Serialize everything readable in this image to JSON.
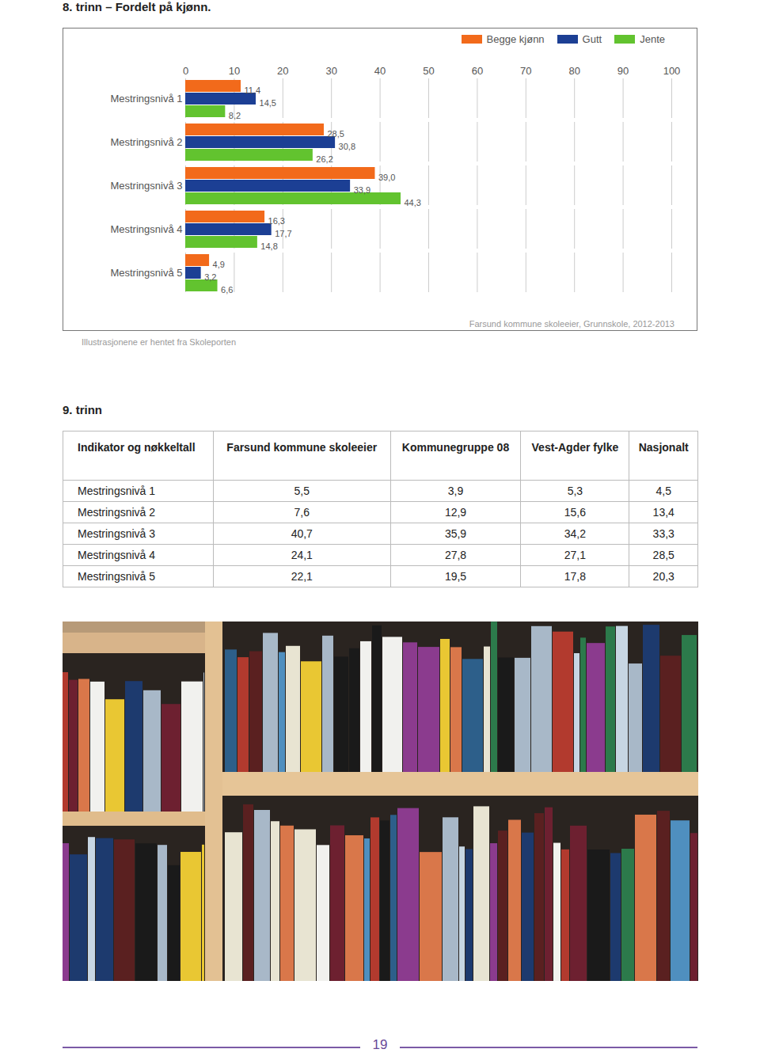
{
  "heading_1": "8. trinn – Fordelt på kjønn.",
  "chart_data": {
    "type": "bar",
    "orientation": "horizontal",
    "categories": [
      "Mestringsnivå 1",
      "Mestringsnivå 2",
      "Mestringsnivå 3",
      "Mestringsnivå 4",
      "Mestringsnivå 5"
    ],
    "series": [
      {
        "name": "Begge kjønn",
        "color": "#f26a1b",
        "values": [
          11.4,
          28.5,
          39.0,
          16.3,
          4.9
        ],
        "value_labels": [
          "11,4",
          "28,5",
          "39,0",
          "16,3",
          "4,9"
        ]
      },
      {
        "name": "Gutt",
        "color": "#1c3f94",
        "values": [
          14.5,
          30.8,
          33.9,
          17.7,
          3.2
        ],
        "value_labels": [
          "14,5",
          "30,8",
          "33,9",
          "17,7",
          "3,2"
        ]
      },
      {
        "name": "Jente",
        "color": "#62c32f",
        "values": [
          8.2,
          26.2,
          44.3,
          14.8,
          6.6
        ],
        "value_labels": [
          "8,2",
          "26,2",
          "44,3",
          "14,8",
          "6,6"
        ]
      }
    ],
    "xlim": [
      0,
      100
    ],
    "xticks": [
      0,
      10,
      20,
      30,
      40,
      50,
      60,
      70,
      80,
      90,
      100
    ],
    "grid": true,
    "legend": "top-right",
    "data_labels": true,
    "note": "Farsund kommune skoleeier, Grunnskole, 2012-2013"
  },
  "caption": "Illustrasjonene er hentet fra Skoleporten",
  "heading_2": "9. trinn",
  "table": {
    "header": [
      "Indikator og nøkkeltall",
      "Farsund kommune skoleeier",
      "Kommunegruppe 08",
      "Vest-Agder fylke",
      "Nasjonalt"
    ],
    "rows": [
      [
        "Mestringsnivå 1",
        "5,5",
        "3,9",
        "5,3",
        "4,5"
      ],
      [
        "Mestringsnivå 2",
        "7,6",
        "12,9",
        "15,6",
        "13,4"
      ],
      [
        "Mestringsnivå 3",
        "40,7",
        "35,9",
        "34,2",
        "33,3"
      ],
      [
        "Mestringsnivå 4",
        "24,1",
        "27,8",
        "27,1",
        "28,5"
      ],
      [
        "Mestringsnivå 5",
        "22,1",
        "19,5",
        "17,8",
        "20,3"
      ]
    ]
  },
  "page_number": 19
}
